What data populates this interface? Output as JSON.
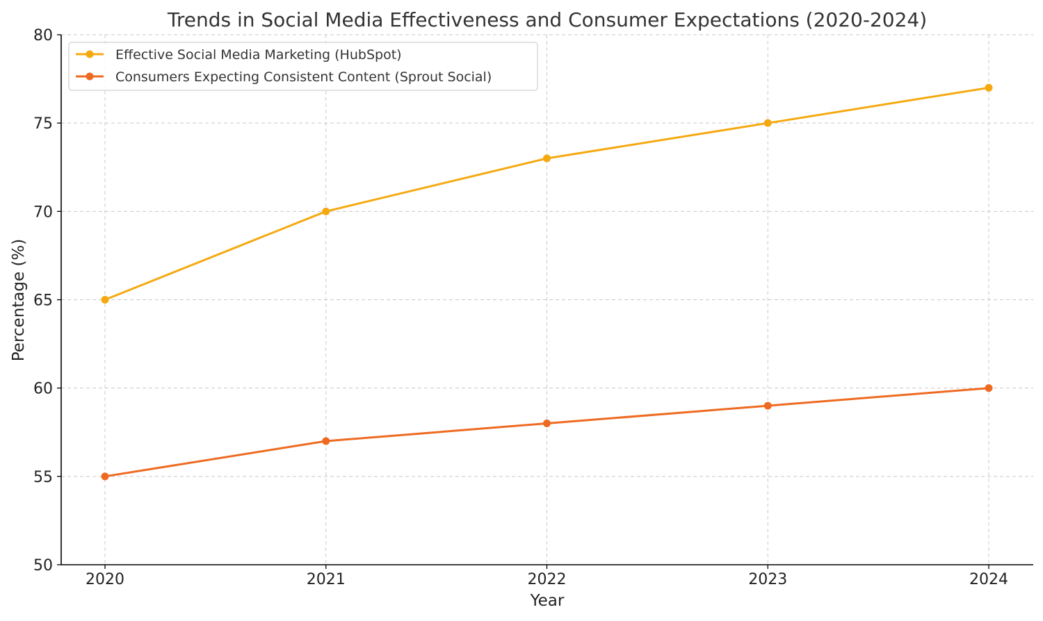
{
  "chart_data": {
    "type": "line",
    "title": "Trends in Social Media Effectiveness and Consumer Expectations (2020-2024)",
    "xlabel": "Year",
    "ylabel": "Percentage (%)",
    "categories": [
      "2020",
      "2021",
      "2022",
      "2023",
      "2024"
    ],
    "ylim": [
      50,
      80
    ],
    "yticks": [
      50,
      55,
      60,
      65,
      70,
      75,
      80
    ],
    "grid": true,
    "legend_position": "top-left",
    "series": [
      {
        "name": "Effective Social Media Marketing (HubSpot)",
        "values": [
          65,
          70,
          73,
          75,
          77
        ],
        "color": "#F5A910"
      },
      {
        "name": "Consumers Expecting Consistent Content (Sprout Social)",
        "values": [
          55,
          57,
          58,
          59,
          60
        ],
        "color": "#EE6A21"
      }
    ]
  }
}
